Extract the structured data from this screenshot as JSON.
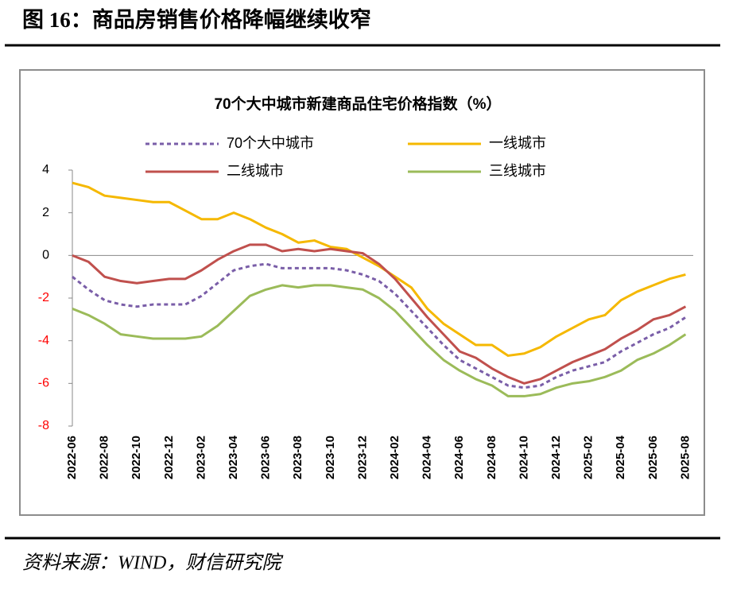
{
  "header": {
    "title": "图 16：商品房销售价格降幅继续收窄"
  },
  "chart_data": {
    "type": "line",
    "title": "70个大中城市新建商品住宅价格指数（%）",
    "categories": [
      "2022-06",
      null,
      "2022-08",
      null,
      "2022-10",
      null,
      "2022-12",
      null,
      "2023-02",
      null,
      "2023-04",
      null,
      "2023-06",
      null,
      "2023-08",
      null,
      "2023-10",
      null,
      "2023-12",
      null,
      "2024-02",
      null,
      "2024-04",
      null,
      "2024-06",
      null,
      "2024-08",
      null,
      "2024-10",
      null,
      "2024-12",
      null,
      "2025-02",
      null,
      "2025-04",
      null,
      "2025-06",
      null,
      "2025-08"
    ],
    "series": [
      {
        "name": "70个大中城市",
        "color": "#7a5ea8",
        "dashed": true,
        "values": [
          -1.0,
          -1.6,
          -2.1,
          -2.3,
          -2.4,
          -2.3,
          -2.3,
          -2.3,
          -1.9,
          -1.3,
          -0.7,
          -0.5,
          -0.4,
          -0.6,
          -0.6,
          -0.6,
          -0.6,
          -0.7,
          -0.9,
          -1.2,
          -1.8,
          -2.6,
          -3.4,
          -4.2,
          -4.9,
          -5.3,
          -5.7,
          -6.1,
          -6.2,
          -6.1,
          -5.7,
          -5.4,
          -5.2,
          -5.0,
          -4.5,
          -4.1,
          -3.7,
          -3.4,
          -2.9
        ]
      },
      {
        "name": "一线城市",
        "color": "#f5b800",
        "dashed": false,
        "values": [
          3.4,
          3.2,
          2.8,
          2.7,
          2.6,
          2.5,
          2.5,
          2.1,
          1.7,
          1.7,
          2.0,
          1.7,
          1.3,
          1.0,
          0.6,
          0.7,
          0.4,
          0.3,
          -0.1,
          -0.5,
          -1.0,
          -1.5,
          -2.5,
          -3.2,
          -3.7,
          -4.2,
          -4.2,
          -4.7,
          -4.6,
          -4.3,
          -3.8,
          -3.4,
          -3.0,
          -2.8,
          -2.1,
          -1.7,
          -1.4,
          -1.1,
          -0.9
        ]
      },
      {
        "name": "二线城市",
        "color": "#c0504d",
        "dashed": false,
        "values": [
          0.0,
          -0.3,
          -1.0,
          -1.2,
          -1.3,
          -1.2,
          -1.1,
          -1.1,
          -0.7,
          -0.2,
          0.2,
          0.5,
          0.5,
          0.2,
          0.3,
          0.2,
          0.3,
          0.2,
          0.1,
          -0.4,
          -1.1,
          -2.0,
          -2.9,
          -3.7,
          -4.5,
          -4.8,
          -5.3,
          -5.7,
          -6.0,
          -5.8,
          -5.4,
          -5.0,
          -4.7,
          -4.4,
          -3.9,
          -3.5,
          -3.0,
          -2.8,
          -2.4
        ]
      },
      {
        "name": "三线城市",
        "color": "#9bbb59",
        "dashed": false,
        "values": [
          -2.5,
          -2.8,
          -3.2,
          -3.7,
          -3.8,
          -3.9,
          -3.9,
          -3.9,
          -3.8,
          -3.3,
          -2.6,
          -1.9,
          -1.6,
          -1.4,
          -1.5,
          -1.4,
          -1.4,
          -1.5,
          -1.6,
          -2.0,
          -2.6,
          -3.4,
          -4.2,
          -4.9,
          -5.4,
          -5.8,
          -6.1,
          -6.6,
          -6.6,
          -6.5,
          -6.2,
          -6.0,
          -5.9,
          -5.7,
          -5.4,
          -4.9,
          -4.6,
          -4.2,
          -3.7
        ]
      }
    ],
    "ylim": [
      -8,
      4
    ],
    "yticks": [
      4,
      2,
      0,
      -2,
      -4,
      -6,
      -8
    ],
    "negative_tick_color": "#ff0000",
    "grid": false
  },
  "footer": {
    "source": "资料来源：WIND，财信研究院"
  }
}
